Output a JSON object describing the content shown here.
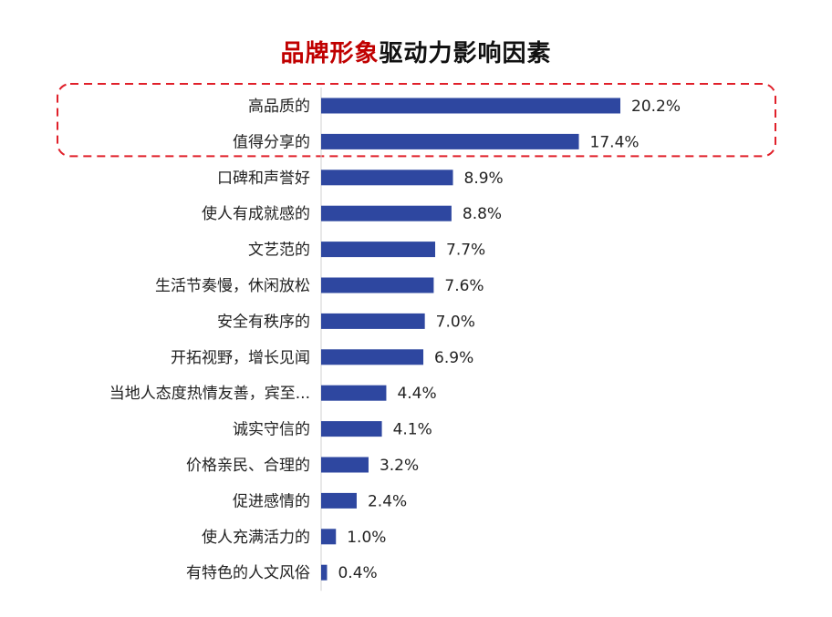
{
  "chart_data": {
    "type": "bar",
    "orientation": "horizontal",
    "title": "品牌形象驱动力影响因素",
    "title_highlight": "品牌形象",
    "title_rest": "驱动力影响因素",
    "categories": [
      "高品质的",
      "值得分享的",
      "口碑和声誉好",
      "使人有成就感的",
      "文艺范的",
      "生活节奏慢，休闲放松",
      "安全有秩序的",
      "开拓视野，增长见闻",
      "当地人态度热情友善，宾至...",
      "诚实守信的",
      "价格亲民、合理的",
      "促进感情的",
      "使人充满活力的",
      "有特色的人文风俗"
    ],
    "values": [
      20.2,
      17.4,
      8.9,
      8.8,
      7.7,
      7.6,
      7.0,
      6.9,
      4.4,
      4.1,
      3.2,
      2.4,
      1.0,
      0.4
    ],
    "value_labels": [
      "20.2%",
      "17.4%",
      "8.9%",
      "8.8%",
      "7.7%",
      "7.6%",
      "7.0%",
      "6.9%",
      "4.4%",
      "4.1%",
      "3.2%",
      "2.4%",
      "1.0%",
      "0.4%"
    ],
    "xlim": [
      0,
      20.2
    ],
    "highlighted_categories": [
      "高品质的",
      "值得分享的"
    ],
    "grid": false,
    "legend": "none",
    "colors": {
      "bar": "#2E47A0",
      "title_accent": "#C00000",
      "highlight_box": "#E0202A",
      "axis": "#D0D0D0"
    }
  }
}
